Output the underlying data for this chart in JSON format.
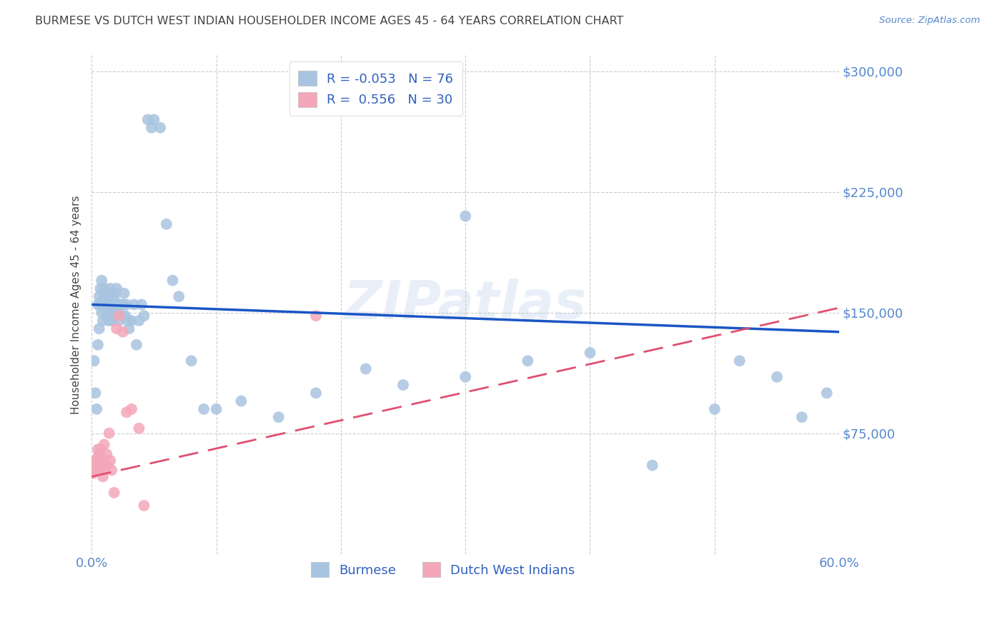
{
  "title": "BURMESE VS DUTCH WEST INDIAN HOUSEHOLDER INCOME AGES 45 - 64 YEARS CORRELATION CHART",
  "source": "Source: ZipAtlas.com",
  "ylabel": "Householder Income Ages 45 - 64 years",
  "xmin": 0.0,
  "xmax": 0.6,
  "ymin": 0,
  "ymax": 310000,
  "yticks": [
    0,
    75000,
    150000,
    225000,
    300000
  ],
  "xticks": [
    0.0,
    0.1,
    0.2,
    0.3,
    0.4,
    0.5,
    0.6
  ],
  "burmese_color": "#a8c4e0",
  "dutch_color": "#f4a7b9",
  "burmese_line_color": "#1a56c4",
  "dutch_line_color": "#e05070",
  "burmese_R": -0.053,
  "burmese_N": 76,
  "dutch_R": 0.556,
  "dutch_N": 30,
  "legend_color": "#3060c0",
  "watermark": "ZIPatlas",
  "background_color": "#ffffff",
  "grid_color": "#cccccc",
  "title_color": "#444444",
  "axis_label_color": "#5588cc",
  "burmese_scatter_x": [
    0.002,
    0.003,
    0.004,
    0.005,
    0.005,
    0.006,
    0.006,
    0.007,
    0.007,
    0.008,
    0.008,
    0.009,
    0.009,
    0.01,
    0.01,
    0.011,
    0.011,
    0.012,
    0.012,
    0.013,
    0.013,
    0.014,
    0.014,
    0.015,
    0.015,
    0.016,
    0.016,
    0.017,
    0.017,
    0.018,
    0.018,
    0.019,
    0.019,
    0.02,
    0.02,
    0.021,
    0.022,
    0.023,
    0.024,
    0.025,
    0.026,
    0.027,
    0.028,
    0.029,
    0.03,
    0.032,
    0.034,
    0.036,
    0.038,
    0.04,
    0.042,
    0.045,
    0.048,
    0.05,
    0.055,
    0.06,
    0.065,
    0.07,
    0.08,
    0.09,
    0.1,
    0.12,
    0.15,
    0.18,
    0.22,
    0.25,
    0.3,
    0.35,
    0.4,
    0.45,
    0.5,
    0.55,
    0.57,
    0.59,
    0.3,
    0.52
  ],
  "burmese_scatter_y": [
    120000,
    100000,
    90000,
    130000,
    155000,
    140000,
    160000,
    155000,
    165000,
    150000,
    170000,
    158000,
    145000,
    155000,
    165000,
    152000,
    160000,
    155000,
    148000,
    162000,
    155000,
    145000,
    158000,
    152000,
    165000,
    148000,
    155000,
    160000,
    145000,
    158000,
    152000,
    162000,
    148000,
    155000,
    165000,
    150000,
    145000,
    155000,
    148000,
    155000,
    162000,
    148000,
    155000,
    145000,
    140000,
    145000,
    155000,
    130000,
    145000,
    155000,
    148000,
    270000,
    265000,
    270000,
    265000,
    205000,
    170000,
    160000,
    120000,
    90000,
    90000,
    95000,
    85000,
    100000,
    115000,
    105000,
    110000,
    120000,
    125000,
    55000,
    90000,
    110000,
    85000,
    100000,
    210000,
    120000
  ],
  "dutch_scatter_x": [
    0.001,
    0.002,
    0.003,
    0.004,
    0.005,
    0.005,
    0.006,
    0.006,
    0.007,
    0.007,
    0.008,
    0.008,
    0.009,
    0.009,
    0.01,
    0.011,
    0.012,
    0.013,
    0.014,
    0.015,
    0.016,
    0.018,
    0.02,
    0.022,
    0.025,
    0.028,
    0.032,
    0.038,
    0.042,
    0.18
  ],
  "dutch_scatter_y": [
    50000,
    55000,
    58000,
    52000,
    60000,
    65000,
    55000,
    62000,
    58000,
    65000,
    52000,
    60000,
    48000,
    55000,
    68000,
    55000,
    62000,
    55000,
    75000,
    58000,
    52000,
    38000,
    140000,
    148000,
    138000,
    88000,
    90000,
    78000,
    30000,
    148000
  ],
  "burmese_trend_x": [
    0.0,
    0.6
  ],
  "burmese_trend_y": [
    155000,
    138000
  ],
  "dutch_trend_x": [
    0.0,
    0.6
  ],
  "dutch_trend_y": [
    48000,
    153000
  ]
}
